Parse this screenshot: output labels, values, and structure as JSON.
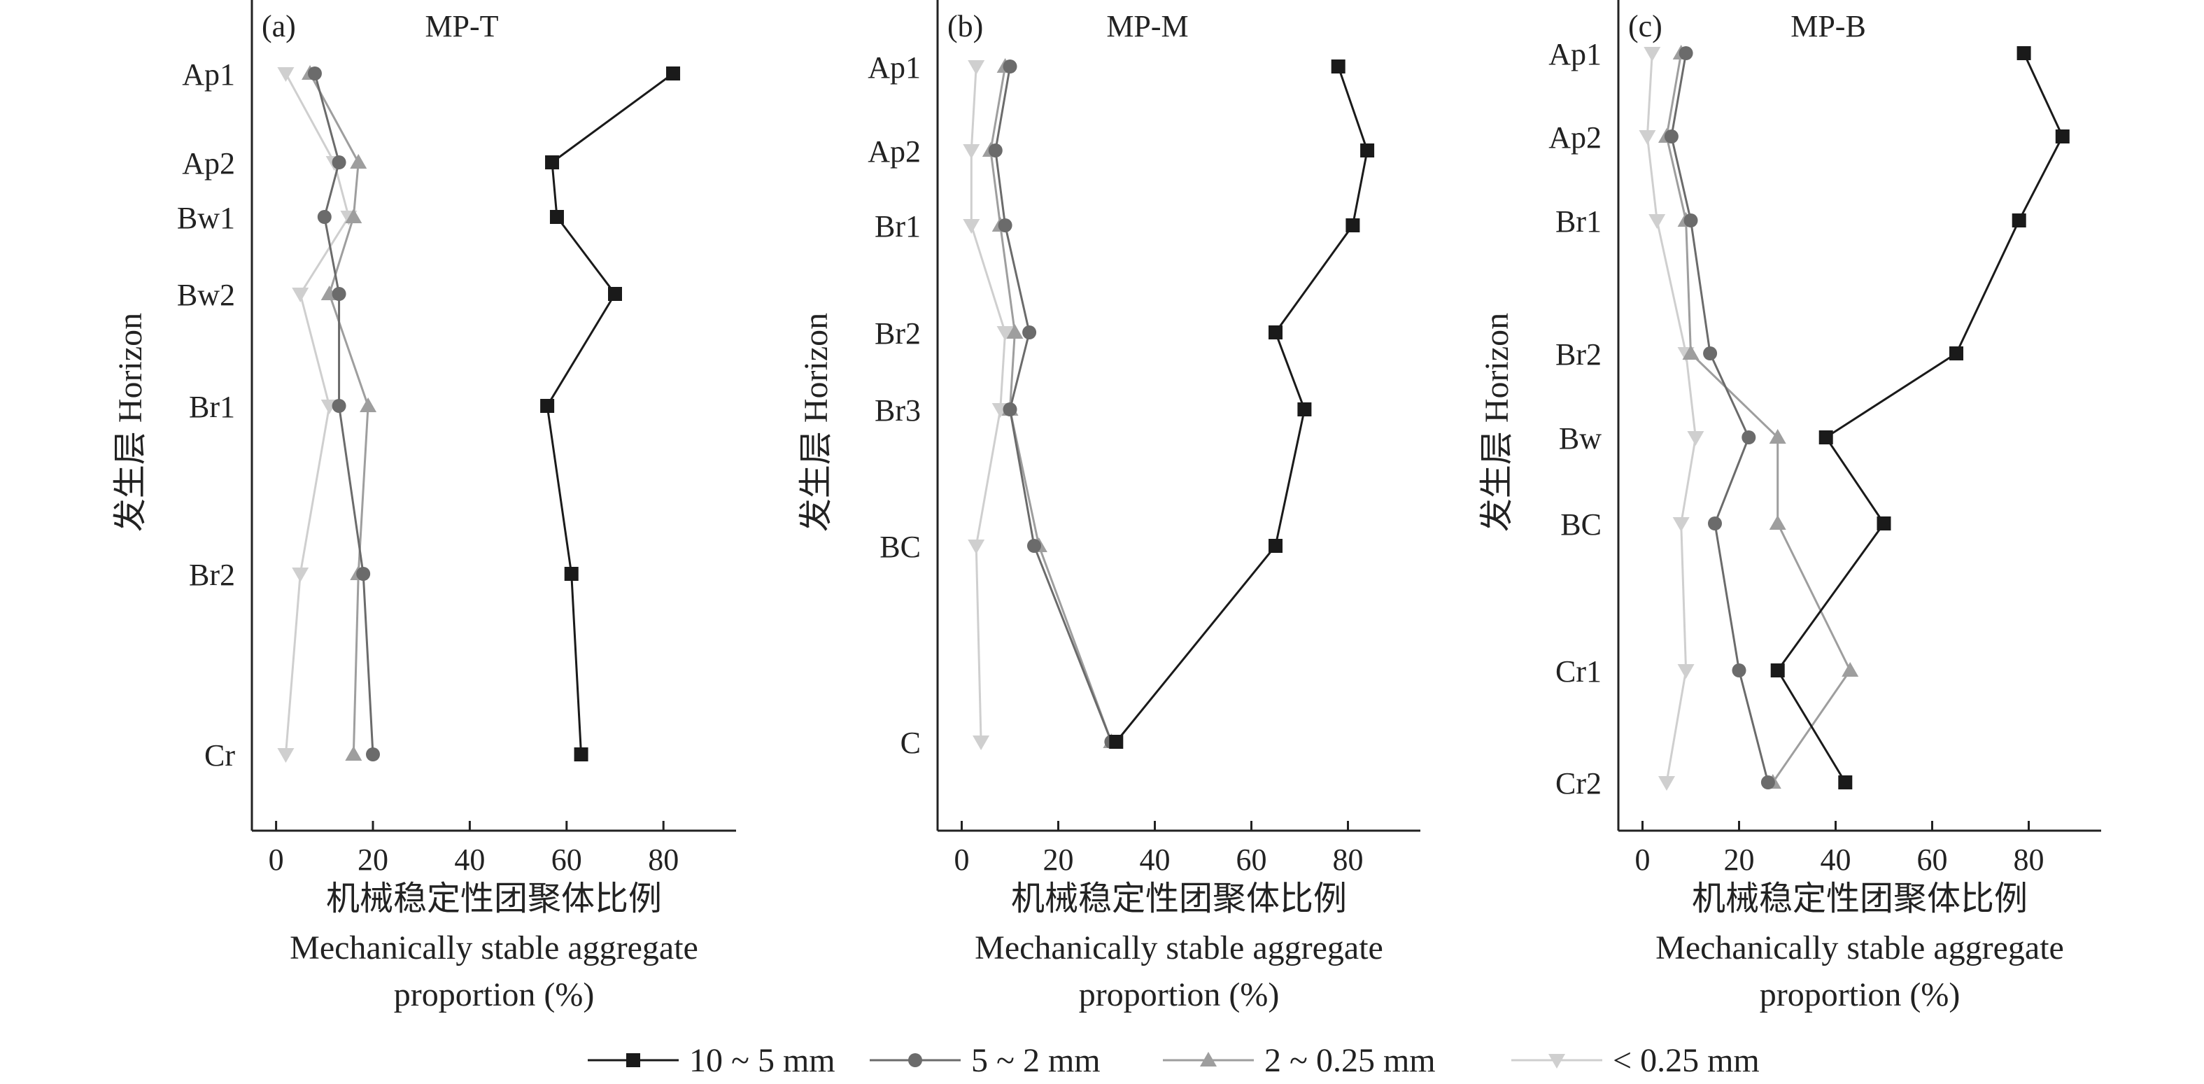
{
  "colors": {
    "s10_5": "#1a1a1a",
    "s5_2": "#6b6b6b",
    "s2_025": "#9e9e9e",
    "s_lt025": "#cfcfcf"
  },
  "legend": [
    {
      "key": "s10_5",
      "label": "10 ~ 5 mm",
      "marker": "square"
    },
    {
      "key": "s5_2",
      "label": "5 ~ 2 mm",
      "marker": "circle"
    },
    {
      "key": "s2_025",
      "label": "2 ~ 0.25 mm",
      "marker": "triangle-up"
    },
    {
      "key": "s_lt025",
      "label": "< 0.25 mm",
      "marker": "triangle-down"
    }
  ],
  "chart_data": [
    {
      "type": "line",
      "panel_label": "(a)",
      "title": "MP-T",
      "xlabel_cn": "机械稳定性团聚体比例",
      "xlabel_en": "Mechanically stable aggregate proportion (%)",
      "xlabel_en_line1": "Mechanically stable aggregate",
      "xlabel_en_line2": "proportion (%)",
      "ylabel": "发生层 Horizon",
      "xlim": [
        -5,
        95
      ],
      "xticks": [
        0,
        20,
        40,
        60,
        80
      ],
      "horizons": [
        "Ap1",
        "Ap2",
        "Bw1",
        "Bw2",
        "Br1",
        "Br2",
        "Cr"
      ],
      "series": [
        {
          "key": "s10_5",
          "values": [
            82,
            57,
            58,
            70,
            56,
            61,
            63
          ]
        },
        {
          "key": "s5_2",
          "values": [
            8,
            13,
            10,
            13,
            13,
            18,
            20
          ]
        },
        {
          "key": "s2_025",
          "values": [
            7,
            17,
            16,
            11,
            19,
            17,
            16
          ]
        },
        {
          "key": "s_lt025",
          "values": [
            2,
            12,
            15,
            5,
            11,
            5,
            2
          ]
        }
      ]
    },
    {
      "type": "line",
      "panel_label": "(b)",
      "title": "MP-M",
      "xlabel_cn": "机械稳定性团聚体比例",
      "xlabel_en": "Mechanically stable aggregate proportion (%)",
      "xlabel_en_line1": "Mechanically stable aggregate",
      "xlabel_en_line2": "proportion (%)",
      "ylabel": "发生层 Horizon",
      "xlim": [
        -5,
        95
      ],
      "xticks": [
        0,
        20,
        40,
        60,
        80
      ],
      "horizons": [
        "Ap1",
        "Ap2",
        "Br1",
        "Br2",
        "Br3",
        "BC",
        "C"
      ],
      "series": [
        {
          "key": "s10_5",
          "values": [
            78,
            84,
            81,
            65,
            71,
            65,
            32
          ]
        },
        {
          "key": "s5_2",
          "values": [
            10,
            7,
            9,
            14,
            10,
            15,
            31
          ]
        },
        {
          "key": "s2_025",
          "values": [
            9,
            6,
            8,
            11,
            10,
            16,
            31
          ]
        },
        {
          "key": "s_lt025",
          "values": [
            3,
            2,
            2,
            9,
            8,
            3,
            4
          ]
        }
      ]
    },
    {
      "type": "line",
      "panel_label": "(c)",
      "title": "MP-B",
      "xlabel_cn": "机械稳定性团聚体比例",
      "xlabel_en": "Mechanically stable aggregate proportion (%)",
      "xlabel_en_line1": "Mechanically stable aggregate",
      "xlabel_en_line2": "proportion (%)",
      "ylabel": "发生层 Horizon",
      "xlim": [
        -5,
        95
      ],
      "xticks": [
        0,
        20,
        40,
        60,
        80
      ],
      "horizons": [
        "Ap1",
        "Ap2",
        "Br1",
        "Br2",
        "Bw",
        "BC",
        "Cr1",
        "Cr2"
      ],
      "series": [
        {
          "key": "s10_5",
          "values": [
            79,
            87,
            78,
            65,
            38,
            50,
            28,
            42
          ]
        },
        {
          "key": "s5_2",
          "values": [
            9,
            6,
            10,
            14,
            22,
            15,
            20,
            26
          ]
        },
        {
          "key": "s2_025",
          "values": [
            8,
            5,
            9,
            10,
            28,
            28,
            43,
            27
          ]
        },
        {
          "key": "s_lt025",
          "values": [
            2,
            1,
            3,
            9,
            11,
            8,
            9,
            5
          ]
        }
      ]
    }
  ]
}
